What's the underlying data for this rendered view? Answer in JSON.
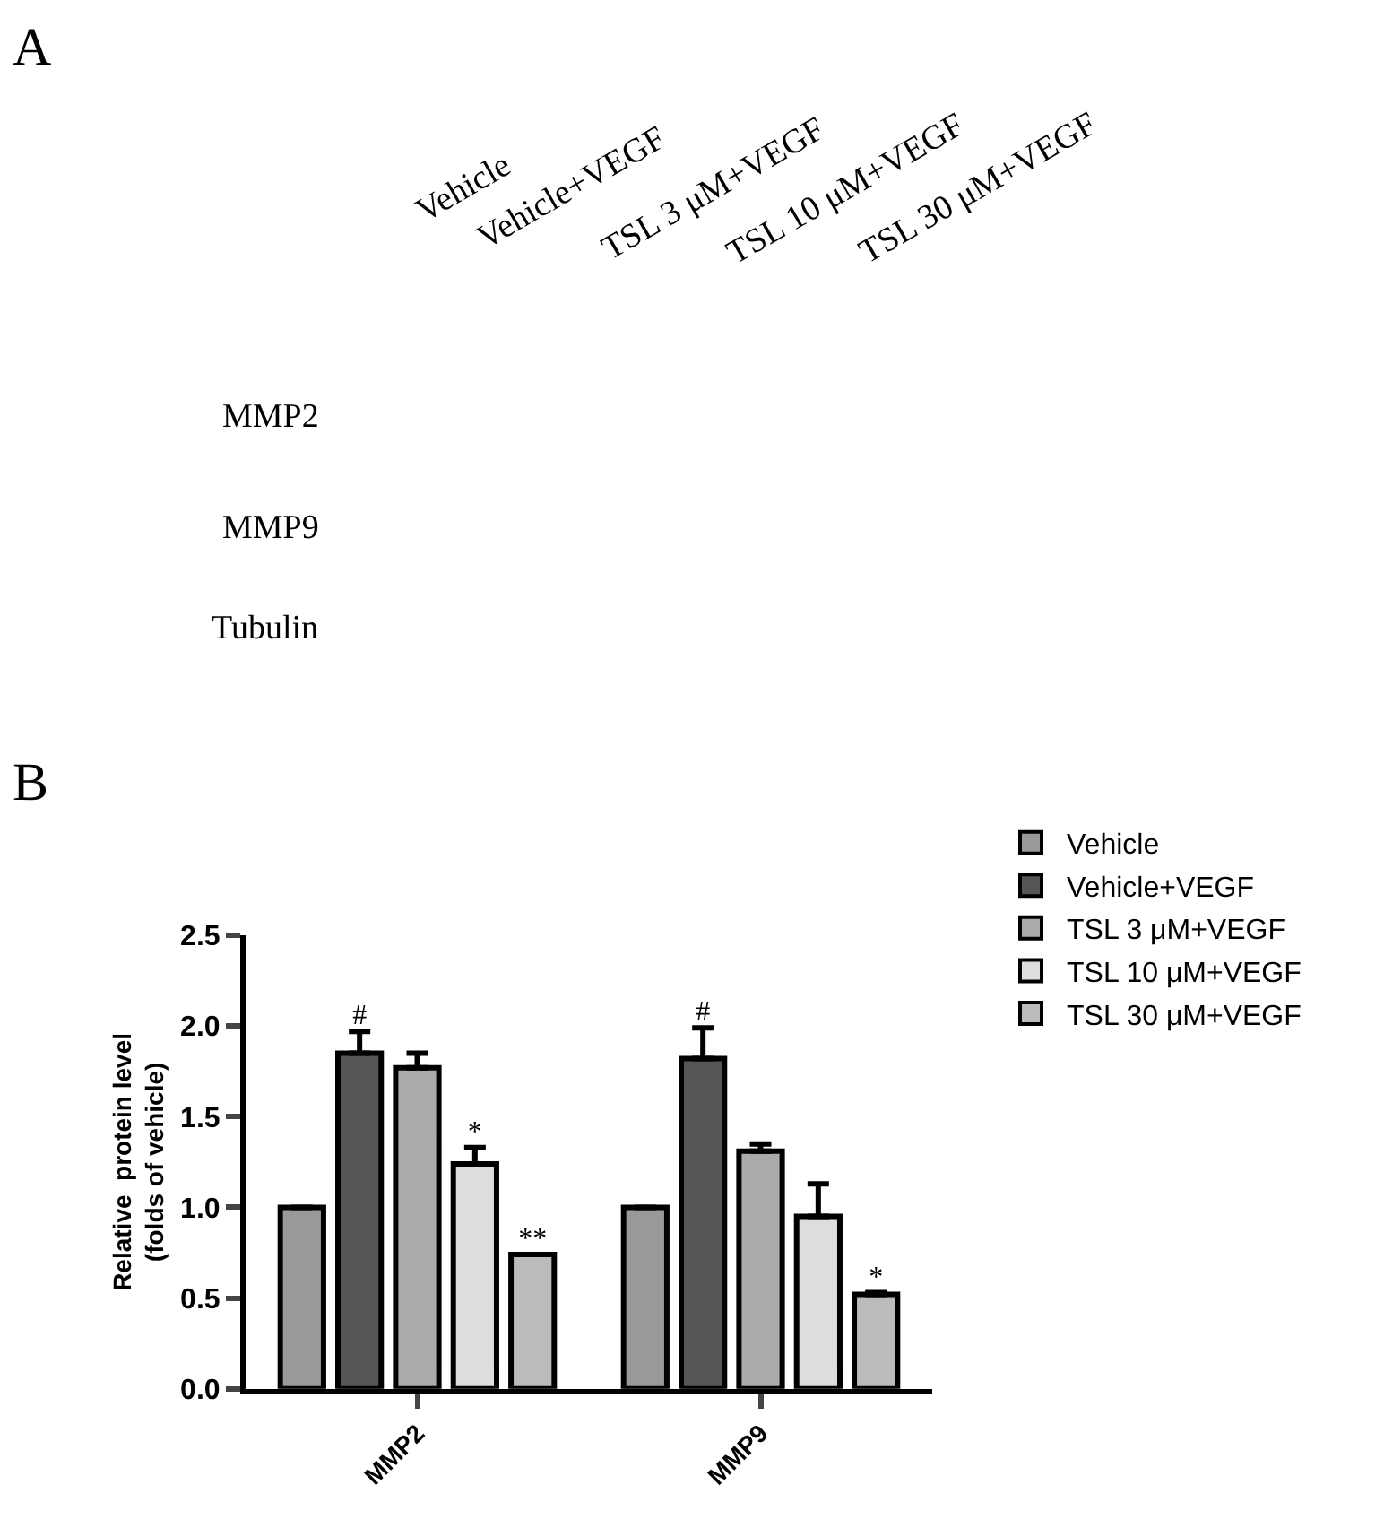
{
  "chart_data": {
    "type": "bar",
    "ylabel": "Relative  protein level\n(folds of vehicle)",
    "categories": [
      "MMP2",
      "MMP9"
    ],
    "series": [
      {
        "name": "Vehicle",
        "color": "#999999",
        "values": [
          1.0,
          1.0
        ],
        "errors": [
          null,
          null
        ]
      },
      {
        "name": "Vehicle+VEGF",
        "color": "#555555",
        "values": [
          1.85,
          1.82
        ],
        "errors": [
          0.12,
          0.17
        ],
        "value_labels": [
          "#",
          "#"
        ]
      },
      {
        "name": "TSL 3 μM+VEGF",
        "color": "#aaaaaa",
        "values": [
          1.77,
          1.31
        ],
        "errors": [
          0.08,
          0.04
        ]
      },
      {
        "name": "TSL 10 μM+VEGF",
        "color": "#dddddd",
        "values": [
          1.24,
          0.95
        ],
        "errors": [
          0.09,
          0.18
        ],
        "value_labels": [
          "*",
          null
        ]
      },
      {
        "name": "TSL 30 μM+VEGF",
        "color": "#bbbbbb",
        "values": [
          0.74,
          0.52
        ],
        "errors": [
          null,
          0.01
        ],
        "value_labels": [
          "**",
          "*"
        ]
      }
    ],
    "ylim": [
      0,
      2.5
    ],
    "yticks": [
      {
        "value": 0,
        "label": "0.0"
      },
      {
        "value": 0.5,
        "label": "0.5"
      },
      {
        "value": 1,
        "label": "1.0"
      },
      {
        "value": 1.5,
        "label": "1.5"
      },
      {
        "value": 2,
        "label": "2.0"
      },
      {
        "value": 2.5,
        "label": "2.5"
      }
    ],
    "legend": "right",
    "annotations": [
      "A",
      "Vehicle",
      "Vehicle+VEGF",
      "TSL 3 μM+VEGF",
      "TSL 10 μM+VEGF",
      "TSL 30 μM+VEGF",
      "MMP2",
      "MMP9",
      "Tubulin",
      "B"
    ]
  }
}
